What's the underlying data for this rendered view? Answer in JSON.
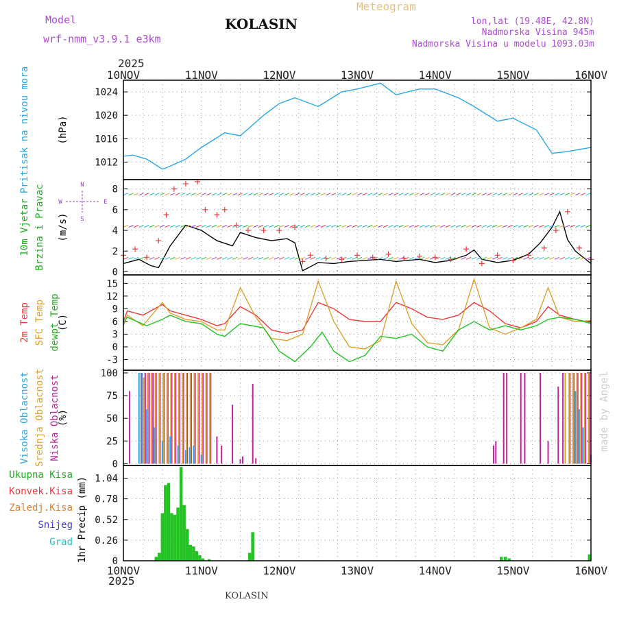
{
  "header": {
    "model_label": "Model",
    "model_name": "wrf-nmm_v3.9.1 e3km",
    "station": "KOLASIN",
    "meteogram": "Meteogram",
    "coords": "lon,lat (19.48E, 42.8N)",
    "elev": "Nadmorska Visina 945m",
    "elev_model": "Nadmorska Visina u modelu 1093.03m",
    "footer_station": "KOLASIN",
    "credit": "made by Angel"
  },
  "colors": {
    "pressure": "#2aa7e6",
    "temp2m": "#e83a3a",
    "sfc": "#e0a030",
    "dew": "#22c322",
    "cloud_high": "#2aa7e6",
    "cloud_mid": "#e0a030",
    "cloud_low": "#c020a0",
    "precip": "#22c322",
    "gust": "#e83a3a",
    "wind_scale": "#a040d0",
    "lbl_green": "#22aa22",
    "lbl_red": "#e83a3a",
    "lbl_orange": "#e08030",
    "lbl_blue": "#4040e0",
    "lbl_cyan": "#20c0c0"
  },
  "chart_data": {
    "type": "meteogram",
    "year": "2025",
    "x_ticks": [
      "10NOV",
      "11NOV",
      "12NOV",
      "13NOV",
      "14NOV",
      "15NOV",
      "16NOV"
    ],
    "panels": [
      {
        "id": "pressure",
        "labels": [
          {
            "text": "Pritisak na nivou mora",
            "color": "#2aa7e6"
          },
          {
            "text": "(hPa)",
            "color": "#000000"
          }
        ],
        "ylim": [
          1009,
          1026
        ],
        "yticks": [
          "1012",
          "1016",
          "1020",
          "1024"
        ],
        "ytick_values": [
          1012,
          1016,
          1020,
          1024
        ],
        "series": [
          {
            "name": "Sea-level pressure",
            "type": "line",
            "color": "#2aa7e6",
            "x": [
              0,
              0.12,
              0.3,
              0.5,
              0.55,
              0.8,
              1.0,
              1.3,
              1.5,
              1.8,
              2.0,
              2.2,
              2.5,
              2.8,
              3.0,
              3.3,
              3.5,
              3.8,
              4.0,
              4.3,
              4.5,
              4.8,
              5.0,
              5.3,
              5.5,
              5.7,
              6.0
            ],
            "y": [
              1013,
              1013.2,
              1012.5,
              1010.8,
              1011.0,
              1012.5,
              1014.5,
              1017.0,
              1016.5,
              1020.0,
              1022.0,
              1023.0,
              1021.5,
              1024.0,
              1024.5,
              1025.5,
              1023.5,
              1024.5,
              1024.5,
              1023.0,
              1021.5,
              1019.0,
              1019.5,
              1017.5,
              1013.5,
              1013.8,
              1014.5
            ]
          }
        ]
      },
      {
        "id": "wind",
        "labels": [
          {
            "text": "10m Vjetar",
            "color": "#22aa22"
          },
          {
            "text": "Brzina i Pravac",
            "color": "#22aa22"
          },
          {
            "text": "(m/s)",
            "color": "#000000"
          }
        ],
        "ylim": [
          -0.3,
          8.9
        ],
        "yticks": [
          "0",
          "2",
          "4",
          "6",
          "8"
        ],
        "ytick_values": [
          0,
          2,
          4,
          6,
          8
        ],
        "compass": {
          "north": "N",
          "south": "S",
          "west": "W",
          "east": "E"
        },
        "series": [
          {
            "name": "Wind speed",
            "type": "line",
            "color": "#000000",
            "x": [
              0,
              0.2,
              0.35,
              0.45,
              0.6,
              0.8,
              1.0,
              1.2,
              1.4,
              1.5,
              1.7,
              1.9,
              2.1,
              2.2,
              2.3,
              2.5,
              2.7,
              2.9,
              3.1,
              3.3,
              3.5,
              3.8,
              4.0,
              4.2,
              4.4,
              4.5,
              4.6,
              4.8,
              5.0,
              5.2,
              5.35,
              5.5,
              5.6,
              5.7,
              5.8,
              6.0
            ],
            "y": [
              0.8,
              1.2,
              0.6,
              0.4,
              2.5,
              4.5,
              4.0,
              3.0,
              2.5,
              3.8,
              3.3,
              3.0,
              3.2,
              2.8,
              0.1,
              0.9,
              0.8,
              1.0,
              1.1,
              1.2,
              1.0,
              1.2,
              0.9,
              1.1,
              1.6,
              2.1,
              1.2,
              0.9,
              1.1,
              1.7,
              2.8,
              4.3,
              5.8,
              3.1,
              2.0,
              0.8
            ]
          },
          {
            "name": "Wind gust",
            "type": "marker",
            "color": "#e83a3a",
            "x": [
              0,
              0.15,
              0.3,
              0.45,
              0.55,
              0.65,
              0.8,
              0.95,
              1.05,
              1.2,
              1.3,
              1.45,
              1.6,
              1.8,
              2.0,
              2.2,
              2.3,
              2.4,
              2.6,
              2.8,
              3.0,
              3.2,
              3.4,
              3.6,
              3.8,
              4.0,
              4.2,
              4.4,
              4.6,
              4.8,
              5.0,
              5.2,
              5.4,
              5.55,
              5.7,
              5.85,
              6.0
            ],
            "y": [
              1.6,
              2.2,
              1.4,
              3.0,
              5.5,
              8.0,
              8.5,
              8.7,
              6.0,
              5.5,
              6.0,
              4.5,
              4.0,
              4.0,
              4.0,
              4.3,
              1.0,
              1.6,
              1.3,
              1.2,
              1.6,
              1.4,
              1.7,
              1.3,
              1.5,
              1.4,
              1.2,
              2.2,
              0.8,
              1.6,
              1.1,
              1.6,
              2.3,
              4.0,
              5.8,
              2.3,
              1.2
            ]
          }
        ]
      },
      {
        "id": "temperature",
        "labels": [
          {
            "text": "2m Temp",
            "color": "#e83a3a"
          },
          {
            "text": "SFC Temp",
            "color": "#e0a030"
          },
          {
            "text": "dewpt Temp",
            "color": "#22aa22"
          },
          {
            "text": "(C)",
            "color": "#000000"
          }
        ],
        "ylim": [
          -5.5,
          17
        ],
        "yticks": [
          "-3",
          "0",
          "3",
          "6",
          "9",
          "12",
          "15"
        ],
        "ytick_values": [
          -3,
          0,
          3,
          6,
          9,
          12,
          15
        ],
        "series": [
          {
            "name": "2m Temp",
            "type": "line",
            "color": "#e83a3a",
            "x": [
              0,
              0.05,
              0.25,
              0.5,
              0.6,
              0.8,
              1.0,
              1.2,
              1.3,
              1.5,
              1.7,
              1.9,
              2.1,
              2.3,
              2.5,
              2.7,
              2.9,
              3.1,
              3.3,
              3.5,
              3.7,
              3.9,
              4.1,
              4.3,
              4.5,
              4.7,
              4.9,
              5.1,
              5.3,
              5.45,
              5.6,
              5.8,
              6.0
            ],
            "y": [
              6,
              8.5,
              7.5,
              10,
              8.5,
              7.5,
              6.5,
              5,
              5.5,
              9.5,
              7.5,
              4,
              3.2,
              4,
              10.5,
              9,
              6.5,
              6,
              6,
              10.5,
              9,
              7,
              6.5,
              7.5,
              10.5,
              8.5,
              5.5,
              4.5,
              6,
              9.5,
              7.5,
              6.5,
              5.8
            ]
          },
          {
            "name": "SFC Temp",
            "type": "line",
            "color": "#e0a030",
            "x": [
              0,
              0.05,
              0.25,
              0.5,
              0.6,
              0.8,
              1.0,
              1.2,
              1.3,
              1.5,
              1.7,
              1.9,
              2.1,
              2.3,
              2.5,
              2.7,
              2.9,
              3.1,
              3.3,
              3.5,
              3.7,
              3.9,
              4.1,
              4.3,
              4.5,
              4.7,
              4.9,
              5.1,
              5.3,
              5.45,
              5.6,
              5.8,
              6.0
            ],
            "y": [
              5,
              7.5,
              5,
              10.5,
              8,
              6.5,
              6,
              4,
              4,
              14,
              7,
              2,
              1.5,
              3,
              15.5,
              6,
              0,
              -0.5,
              1.5,
              15.5,
              5.5,
              1,
              0.5,
              4,
              16,
              4.5,
              3,
              4.5,
              6.5,
              14,
              7,
              6,
              6.2
            ]
          },
          {
            "name": "Dewpt Temp",
            "type": "line",
            "color": "#22c322",
            "x": [
              0,
              0.05,
              0.3,
              0.5,
              0.6,
              0.8,
              1.0,
              1.2,
              1.3,
              1.5,
              1.8,
              2.0,
              2.2,
              2.4,
              2.55,
              2.7,
              2.9,
              3.1,
              3.3,
              3.5,
              3.7,
              3.9,
              4.1,
              4.3,
              4.5,
              4.7,
              4.9,
              5.1,
              5.3,
              5.45,
              5.6,
              5.8,
              6.0
            ],
            "y": [
              5.5,
              7,
              5,
              6.5,
              7.5,
              6,
              5.5,
              3,
              2.5,
              5.5,
              4.5,
              -1,
              -3.5,
              0,
              3.5,
              -1,
              -3.5,
              -2,
              2.5,
              2,
              3,
              0,
              -1,
              4,
              6,
              4,
              5,
              4,
              5,
              6.5,
              7,
              6.5,
              5.5
            ]
          }
        ]
      },
      {
        "id": "cloud",
        "labels": [
          {
            "text": "Visoka Oblacnost",
            "color": "#2aa7e6"
          },
          {
            "text": "Srednja Oblacnost",
            "color": "#e0a030"
          },
          {
            "text": "Niska Oblacnost",
            "color": "#c020a0"
          },
          {
            "text": "(%)",
            "color": "#000000"
          }
        ],
        "ylim": [
          -2,
          103
        ],
        "yticks": [
          "0",
          "25",
          "50",
          "75",
          "100"
        ],
        "ytick_values": [
          0,
          25,
          50,
          75,
          100
        ],
        "series": [
          {
            "name": "Niska Oblacnost",
            "type": "bar",
            "color": "#c020a0",
            "x": [
              0.08,
              0.23,
              0.28,
              0.33,
              0.38,
              0.42,
              0.47,
              0.52,
              0.57,
              0.62,
              0.67,
              0.72,
              0.77,
              0.82,
              0.87,
              0.92,
              0.97,
              1.02,
              1.07,
              1.12,
              1.2,
              1.26,
              1.4,
              1.5,
              1.53,
              1.66,
              1.7,
              4.75,
              4.78,
              4.88,
              4.92,
              5.1,
              5.15,
              5.35,
              5.45,
              5.58,
              5.64,
              5.73,
              5.78,
              5.83,
              5.88,
              5.93,
              5.98
            ],
            "y": [
              80,
              100,
              100,
              100,
              100,
              100,
              100,
              100,
              100,
              100,
              100,
              100,
              100,
              100,
              100,
              100,
              100,
              100,
              100,
              100,
              30,
              20,
              65,
              5,
              8,
              88,
              6,
              20,
              25,
              100,
              100,
              100,
              100,
              100,
              25,
              85,
              100,
              100,
              100,
              100,
              100,
              100,
              100
            ]
          },
          {
            "name": "Srednja Oblacnost",
            "type": "bar",
            "color": "#e0a030",
            "x": [
              0.26,
              0.31,
              0.36,
              0.41,
              0.46,
              0.51,
              0.56,
              0.61,
              0.66,
              0.71,
              0.76,
              0.81,
              0.86,
              0.91,
              0.96,
              1.01,
              1.06,
              1.11,
              5.67,
              5.72,
              5.77,
              5.82,
              5.87,
              5.92,
              5.97
            ],
            "y": [
              95,
              100,
              100,
              100,
              100,
              100,
              100,
              100,
              100,
              100,
              100,
              100,
              100,
              100,
              100,
              100,
              100,
              100,
              100,
              100,
              100,
              100,
              100,
              100,
              100
            ]
          },
          {
            "name": "Visoka Oblacnost",
            "type": "bar",
            "color": "#2aa7e6",
            "x": [
              0.2,
              0.24,
              0.3,
              0.4,
              0.5,
              0.6,
              0.7,
              0.8,
              0.85,
              0.9,
              1.0,
              5.8,
              5.85,
              5.9,
              6.0
            ],
            "y": [
              100,
              100,
              60,
              40,
              25,
              30,
              20,
              15,
              18,
              20,
              10,
              80,
              60,
              40,
              10
            ]
          }
        ]
      },
      {
        "id": "precip",
        "labels": [
          {
            "text": "Ukupna Kisa",
            "color": "#22aa22"
          },
          {
            "text": "Konvek.Kisa",
            "color": "#e83a3a"
          },
          {
            "text": "Zaledj.Kisa",
            "color": "#e08030"
          },
          {
            "text": "Snijeg",
            "color": "#4040e0"
          },
          {
            "text": "Grad",
            "color": "#20c0c0"
          },
          {
            "text": "1hr Precip (mm)",
            "color": "#000000"
          }
        ],
        "ylim": [
          0,
          1.2
        ],
        "yticks": [
          "0",
          "0.26",
          "0.52",
          "0.78",
          "1.04"
        ],
        "ytick_values": [
          0,
          0.26,
          0.52,
          0.78,
          1.04
        ],
        "series": [
          {
            "name": "Ukupna Kisa",
            "type": "bar",
            "color": "#22c322",
            "x": [
              0.42,
              0.46,
              0.5,
              0.54,
              0.58,
              0.62,
              0.66,
              0.7,
              0.74,
              0.78,
              0.82,
              0.86,
              0.9,
              0.94,
              0.98,
              1.02,
              1.1,
              1.62,
              1.66,
              4.85,
              4.9,
              4.95,
              5.98
            ],
            "y": [
              0.05,
              0.1,
              0.6,
              0.95,
              0.98,
              0.6,
              0.58,
              0.67,
              1.18,
              0.7,
              0.4,
              0.2,
              0.18,
              0.12,
              0.07,
              0.03,
              0.02,
              0.1,
              0.36,
              0.05,
              0.05,
              0.03,
              0.08
            ]
          }
        ]
      }
    ]
  }
}
